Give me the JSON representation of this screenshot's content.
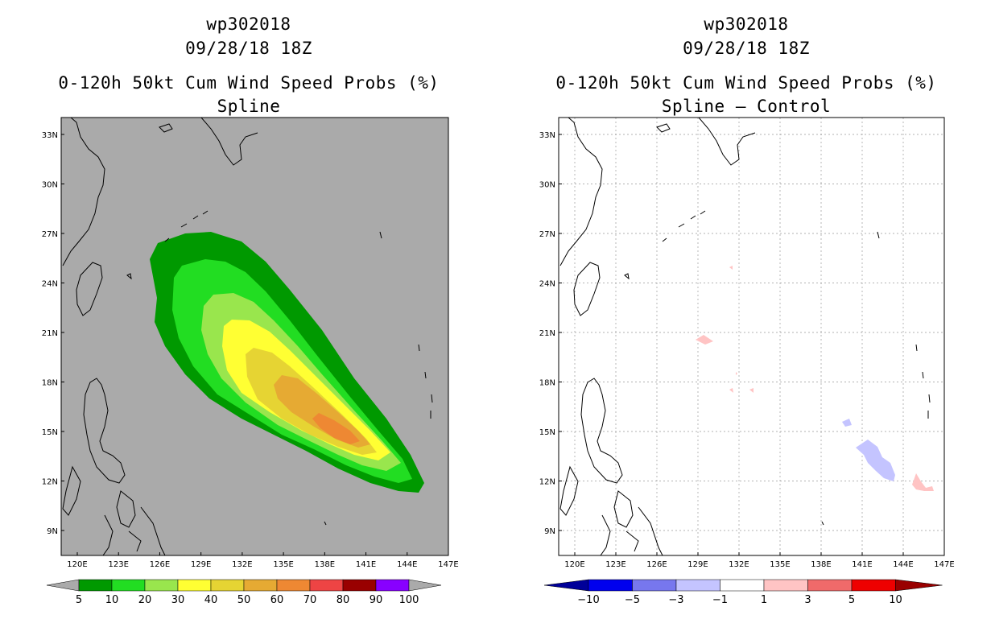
{
  "left_panel": {
    "title_line1": "wp302018",
    "title_line2": "09/28/18 18Z",
    "title_line3": "0-120h 50kt Cum Wind Speed Probs (%)",
    "title_line4": "Spline",
    "background_color": "#aaaaaa",
    "colorbar": {
      "labels": [
        "5",
        "10",
        "20",
        "30",
        "40",
        "50",
        "60",
        "70",
        "80",
        "90",
        "100"
      ],
      "colors": [
        "#009900",
        "#22dd22",
        "#99e64d",
        "#ffff33",
        "#e6d433",
        "#e6aa33",
        "#ee8833",
        "#ee4444",
        "#990000",
        "#8800ff"
      ]
    }
  },
  "right_panel": {
    "title_line1": "wp302018",
    "title_line2": "09/28/18 18Z",
    "title_line3": "0-120h 50kt Cum Wind Speed Probs (%)",
    "title_line4": "Spline – Control",
    "background_color": "#ffffff",
    "colorbar": {
      "labels": [
        "−10",
        "−5",
        "−3",
        "−1",
        "1",
        "3",
        "5",
        "10"
      ],
      "colors": [
        "#000099",
        "#0000ee",
        "#7777ee",
        "#c4c4ff",
        "#ffffff",
        "#ffc4c4",
        "#f06a6a",
        "#ee0000",
        "#990000"
      ]
    }
  },
  "axes": {
    "lon_labels": [
      "120E",
      "123E",
      "126E",
      "129E",
      "132E",
      "135E",
      "138E",
      "141E",
      "144E",
      "147E"
    ],
    "lat_labels": [
      "33N",
      "30N",
      "27N",
      "24N",
      "21N",
      "18N",
      "15N",
      "12N",
      "9N"
    ]
  }
}
